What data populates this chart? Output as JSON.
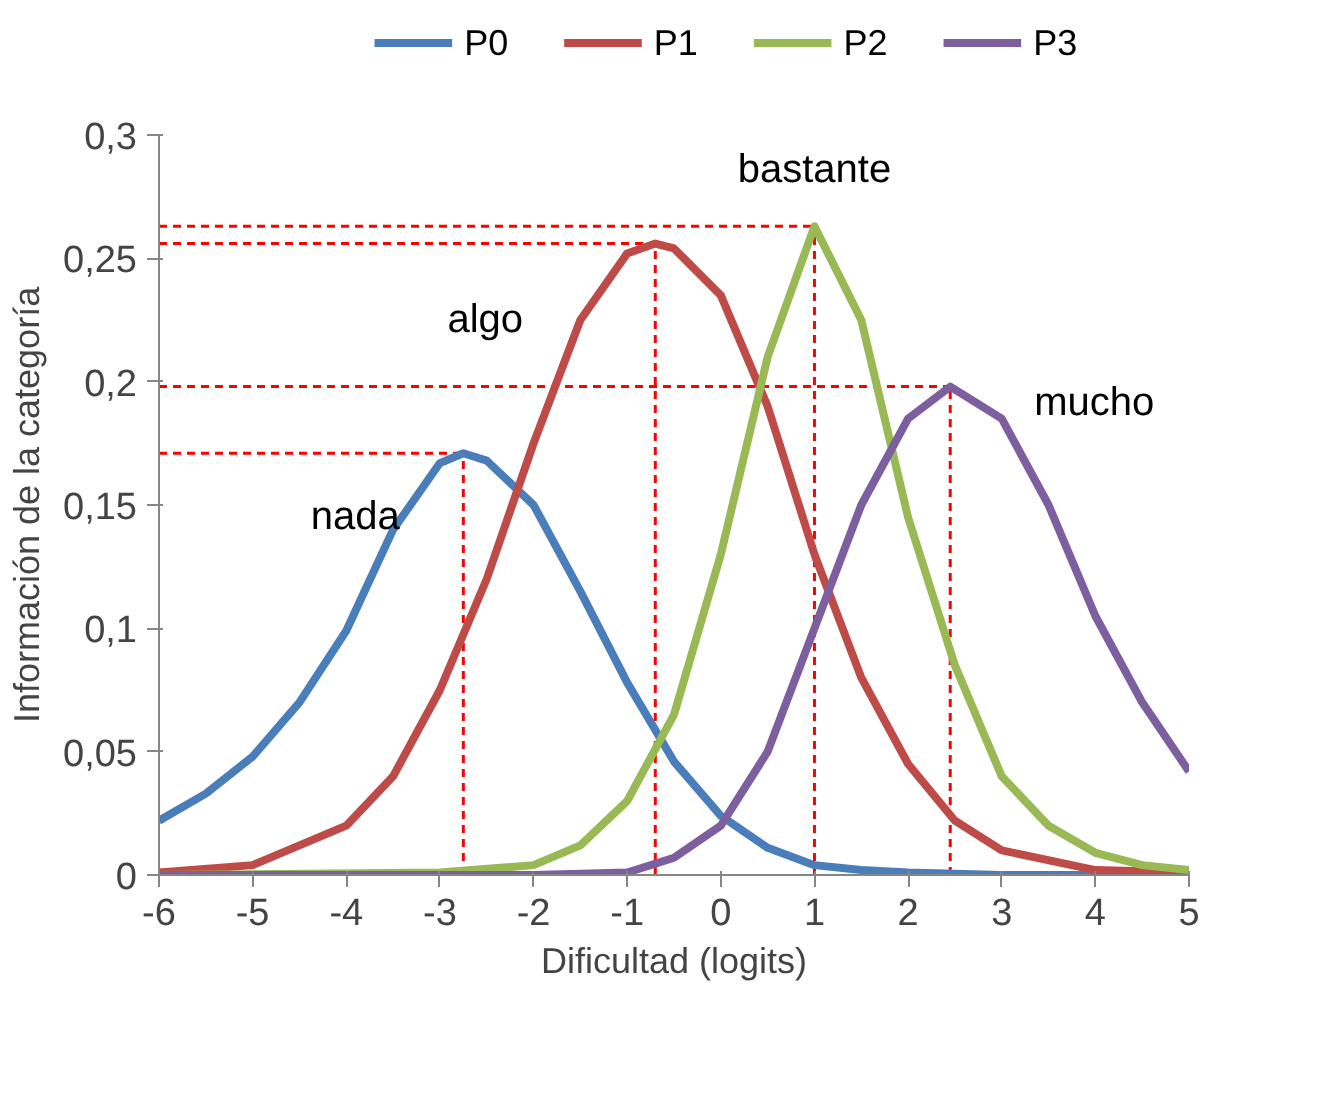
{
  "chart_data": {
    "type": "line",
    "xlabel": "Dificultad (logits)",
    "ylabel": "Información de la categoría",
    "xlim": [
      -6,
      5
    ],
    "ylim": [
      0,
      0.3
    ],
    "xticks": [
      -6,
      -5,
      -4,
      -3,
      -2,
      -1,
      0,
      1,
      2,
      3,
      4,
      5
    ],
    "yticks": [
      0,
      {
        "value": 0.05,
        "label": "0,05"
      },
      {
        "value": 0.1,
        "label": "0,1"
      },
      {
        "value": 0.15,
        "label": "0,15"
      },
      {
        "value": 0.2,
        "label": "0,2"
      },
      {
        "value": 0.25,
        "label": "0,25"
      },
      {
        "value": 0.3,
        "label": "0,3"
      }
    ],
    "grid": false,
    "legend": "top",
    "line_style": "solid",
    "marker": "none",
    "series": [
      {
        "name": "P0",
        "color": "#4a7ebb",
        "x": [
          -6,
          -5.5,
          -5,
          -4.5,
          -4,
          -3.5,
          -3,
          -2.75,
          -2.5,
          -2,
          -1.5,
          -1,
          -0.5,
          0,
          0.5,
          1,
          1.5,
          2,
          3,
          4,
          5
        ],
        "values": [
          0.022,
          0.033,
          0.048,
          0.07,
          0.099,
          0.14,
          0.167,
          0.171,
          0.168,
          0.15,
          0.115,
          0.078,
          0.046,
          0.024,
          0.011,
          0.004,
          0.002,
          0.001,
          0,
          0,
          0
        ]
      },
      {
        "name": "P1",
        "color": "#be4b48",
        "x": [
          -6,
          -5,
          -4,
          -3.5,
          -3,
          -2.5,
          -2,
          -1.5,
          -1,
          -0.7,
          -0.5,
          0,
          0.5,
          1,
          1.5,
          2,
          2.5,
          3,
          4,
          5
        ],
        "values": [
          0.001,
          0.004,
          0.02,
          0.04,
          0.075,
          0.12,
          0.175,
          0.225,
          0.252,
          0.256,
          0.254,
          0.235,
          0.19,
          0.13,
          0.08,
          0.045,
          0.022,
          0.01,
          0.002,
          0.001
        ]
      },
      {
        "name": "P2",
        "color": "#98b954",
        "x": [
          -6,
          -3,
          -2,
          -1.5,
          -1,
          -0.5,
          0,
          0.5,
          1,
          1.5,
          2,
          2.5,
          3,
          3.5,
          4,
          4.5,
          5
        ],
        "values": [
          0,
          0.001,
          0.004,
          0.012,
          0.03,
          0.065,
          0.13,
          0.21,
          0.263,
          0.225,
          0.145,
          0.085,
          0.04,
          0.02,
          0.009,
          0.004,
          0.002
        ]
      },
      {
        "name": "P3",
        "color": "#7d5fa0",
        "x": [
          -6,
          -2,
          -1,
          -0.5,
          0,
          0.5,
          1,
          1.5,
          2,
          2.45,
          3,
          3.5,
          4,
          4.5,
          5
        ],
        "values": [
          0,
          0,
          0.001,
          0.007,
          0.02,
          0.05,
          0.1,
          0.15,
          0.185,
          0.198,
          0.185,
          0.15,
          0.105,
          0.07,
          0.042
        ]
      }
    ],
    "ref_lines": [
      {
        "axis": "x",
        "value": -2.75,
        "color": "#ff0000",
        "line_style": "dashed"
      },
      {
        "axis": "x",
        "value": -0.7,
        "color": "#ff0000",
        "line_style": "dashed"
      },
      {
        "axis": "x",
        "value": 1.0,
        "color": "#ff0000",
        "line_style": "dashed"
      },
      {
        "axis": "x",
        "value": 2.45,
        "color": "#ff0000",
        "line_style": "dashed"
      },
      {
        "axis": "y",
        "value": 0.171,
        "color": "#ff0000",
        "line_style": "dashed"
      },
      {
        "axis": "y",
        "value": 0.256,
        "color": "#ff0000",
        "line_style": "dashed"
      },
      {
        "axis": "y",
        "value": 0.263,
        "color": "#ff0000",
        "line_style": "dashed"
      },
      {
        "axis": "y",
        "value": 0.198,
        "color": "#ff0000",
        "line_style": "dashed"
      }
    ],
    "annotations": [
      "nada",
      "algo",
      "bastante",
      "mucho"
    ]
  }
}
